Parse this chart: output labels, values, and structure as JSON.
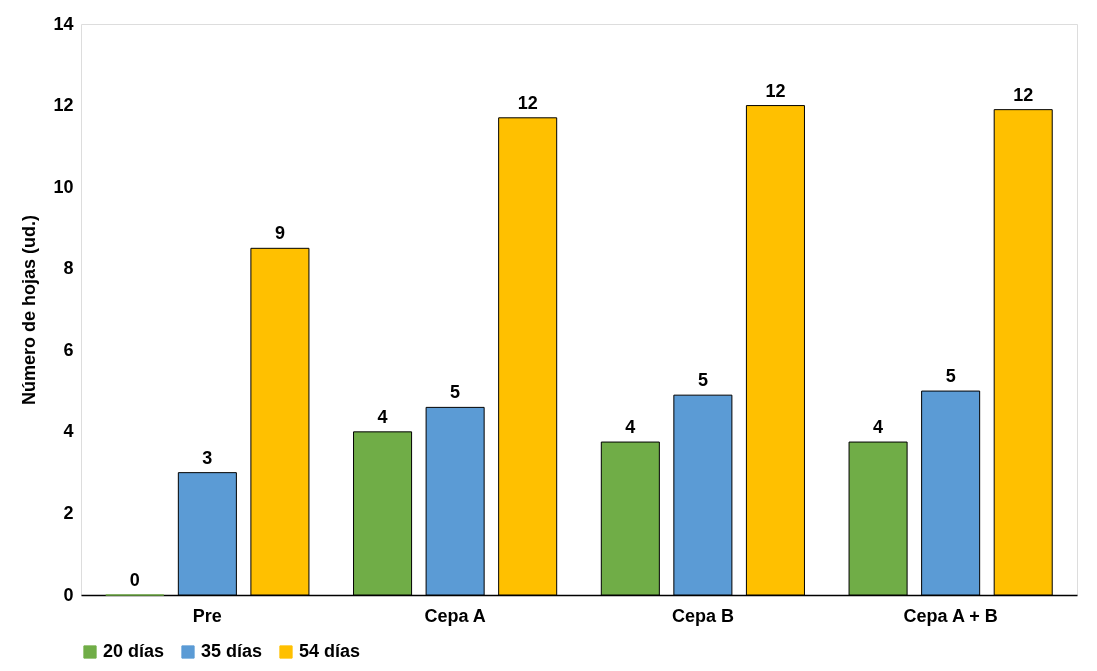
{
  "chart_data": {
    "type": "bar",
    "ylabel": "Número de hojas (ud.)",
    "categories": [
      "Pre",
      "Cepa A",
      "Cepa B",
      "Cepa A + B"
    ],
    "series": [
      {
        "name": "20 días",
        "color": "#70ad47",
        "values": [
          0,
          4.0,
          3.75,
          3.75
        ],
        "value_labels": [
          "0",
          "4",
          "4",
          "4"
        ]
      },
      {
        "name": "35 días",
        "color": "#5b9bd5",
        "values": [
          3.0,
          4.6,
          4.9,
          5.0
        ],
        "value_labels": [
          "3",
          "5",
          "5",
          "5"
        ]
      },
      {
        "name": "54 días",
        "color": "#ffc000",
        "values": [
          8.5,
          11.7,
          12.0,
          11.9
        ],
        "value_labels": [
          "9",
          "12",
          "12",
          "12"
        ]
      }
    ],
    "ylim": [
      0,
      14
    ],
    "yticks": [
      0,
      2,
      4,
      6,
      8,
      10,
      12,
      14
    ],
    "grid": false,
    "legend": "bottom"
  }
}
